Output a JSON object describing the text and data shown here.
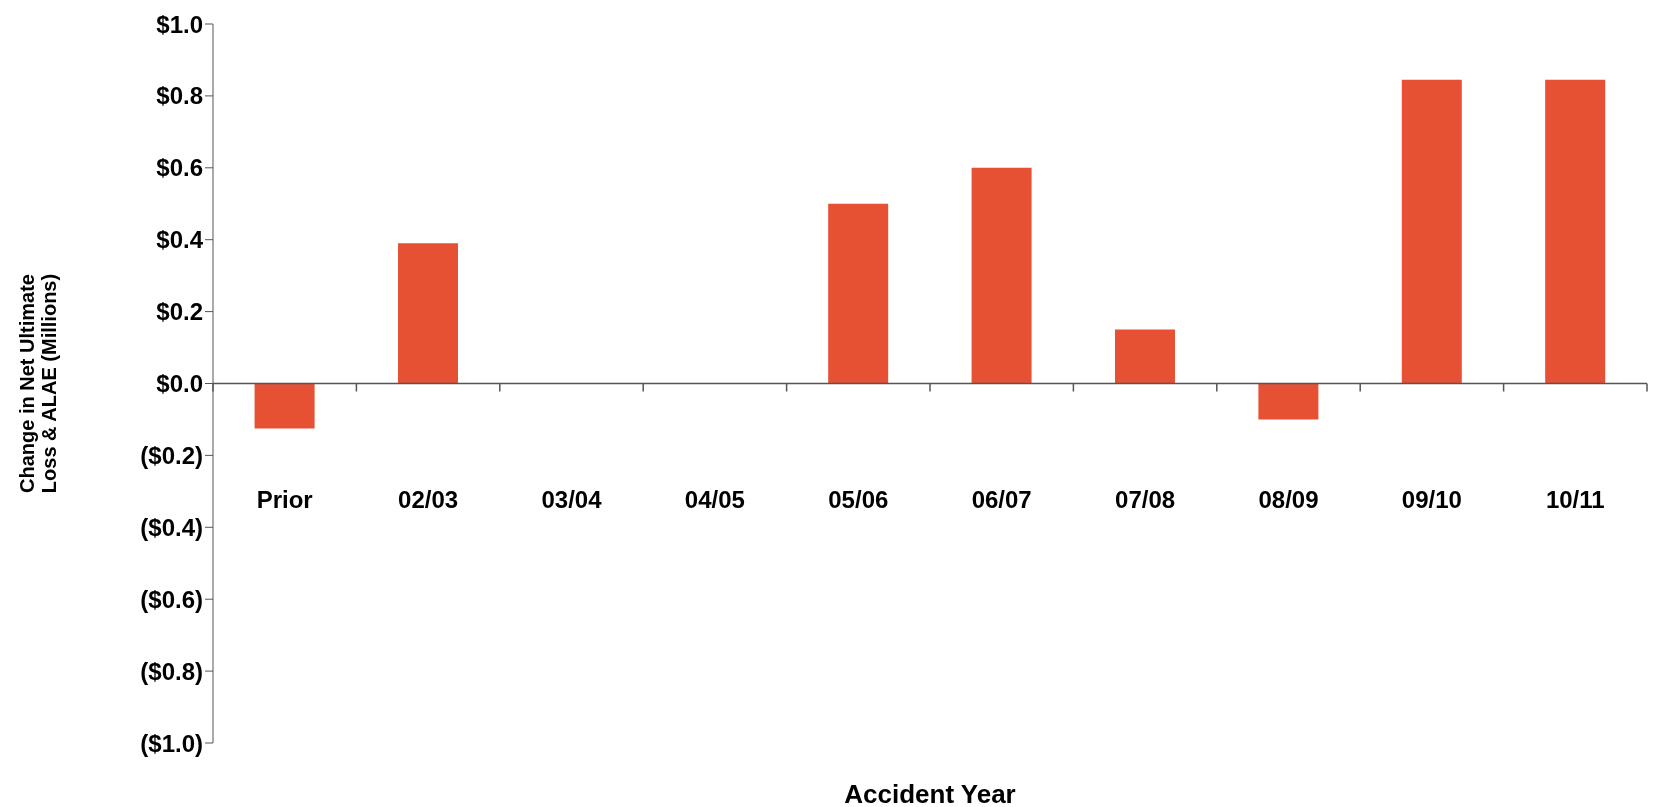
{
  "chart_data": {
    "type": "bar",
    "xlabel": "Accident Year",
    "ylabel": "Change in Net Ultimate Loss & ALAE (Millions)",
    "categories": [
      "Prior",
      "02/03",
      "03/04",
      "04/05",
      "05/06",
      "06/07",
      "07/08",
      "08/09",
      "09/10",
      "10/11"
    ],
    "values": [
      -0.125,
      0.39,
      0,
      0,
      0.5,
      0.6,
      0.15,
      -0.1,
      0.845,
      0.845
    ],
    "color": "#e65033",
    "ylim": [
      -1,
      1
    ],
    "yticks": [
      {
        "value": -1,
        "label": "($1.0)"
      },
      {
        "value": -0.8,
        "label": "($0.8)"
      },
      {
        "value": -0.6,
        "label": "($0.6)"
      },
      {
        "value": -0.4,
        "label": "($0.4)"
      },
      {
        "value": -0.2,
        "label": "($0.2)"
      },
      {
        "value": 0,
        "label": "$0.0"
      },
      {
        "value": 0.2,
        "label": "$0.2"
      },
      {
        "value": 0.4,
        "label": "$0.4"
      },
      {
        "value": 0.6,
        "label": "$0.6"
      },
      {
        "value": 0.8,
        "label": "$0.8"
      },
      {
        "value": 1,
        "label": "$1.0"
      }
    ],
    "legend": false
  }
}
